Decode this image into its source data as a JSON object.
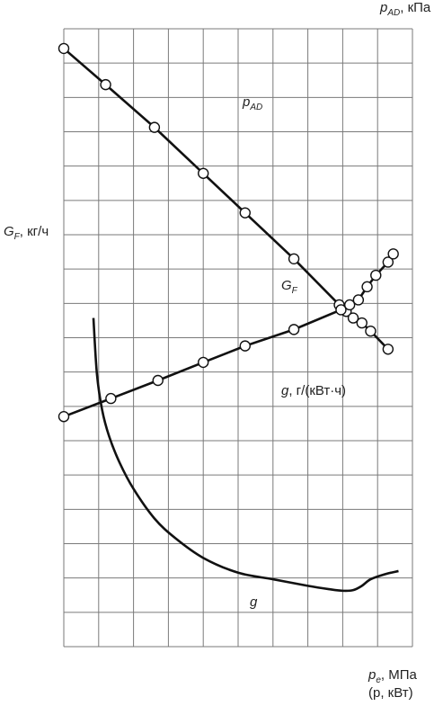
{
  "chart_data": {
    "type": "line",
    "title": "",
    "grid": true,
    "axes": {
      "top_right": {
        "symbol": "p",
        "subscript": "AD",
        "unit": ", кПа"
      },
      "left": {
        "symbol": "G",
        "subscript": "F",
        "unit": ", кг/ч"
      },
      "bottom_right": {
        "symbol": "p",
        "subscript": "e",
        "unit": ", МПа",
        "line2": "(p, кВт)"
      }
    },
    "series": [
      {
        "name": "p_AD",
        "label": {
          "symbol": "p",
          "subscript": "AD"
        },
        "color": "#111111",
        "markers": true,
        "x": [
          0,
          1.2,
          2.6,
          4.0,
          5.2,
          6.6,
          7.9,
          8.1,
          8.3,
          8.55,
          8.8,
          9.3
        ],
        "y": [
          18.2,
          17.1,
          15.8,
          14.4,
          13.2,
          11.8,
          10.4,
          10.2,
          10.0,
          9.85,
          9.6,
          9.05
        ]
      },
      {
        "name": "G_F",
        "label": {
          "symbol": "G",
          "subscript": "F"
        },
        "color": "#111111",
        "markers": true,
        "x": [
          0,
          1.35,
          2.7,
          4.0,
          5.2,
          6.6,
          7.95,
          8.2,
          8.45,
          8.7,
          8.95,
          9.3,
          9.45
        ],
        "y": [
          7.0,
          7.55,
          8.1,
          8.65,
          9.15,
          9.65,
          10.25,
          10.4,
          10.55,
          10.95,
          11.3,
          11.7,
          11.95
        ]
      },
      {
        "name": "g",
        "label": {
          "symbol": "g",
          "subscript": "",
          "unit": ", г/(кВт·ч)"
        },
        "curve_label": "g",
        "color": "#111111",
        "markers": false,
        "x": [
          0.85,
          0.95,
          1.1,
          1.3,
          1.6,
          2.0,
          2.6,
          3.2,
          4.0,
          5.0,
          6.0,
          7.0,
          7.6,
          8.0,
          8.3,
          8.55,
          8.8,
          9.2,
          9.6
        ],
        "y": [
          10.0,
          8.3,
          7.2,
          6.4,
          5.6,
          4.8,
          3.9,
          3.3,
          2.7,
          2.25,
          2.05,
          1.85,
          1.75,
          1.7,
          1.72,
          1.85,
          2.05,
          2.2,
          2.3
        ]
      }
    ],
    "xlim": [
      0,
      10
    ],
    "ylim": [
      0,
      18.8
    ]
  }
}
